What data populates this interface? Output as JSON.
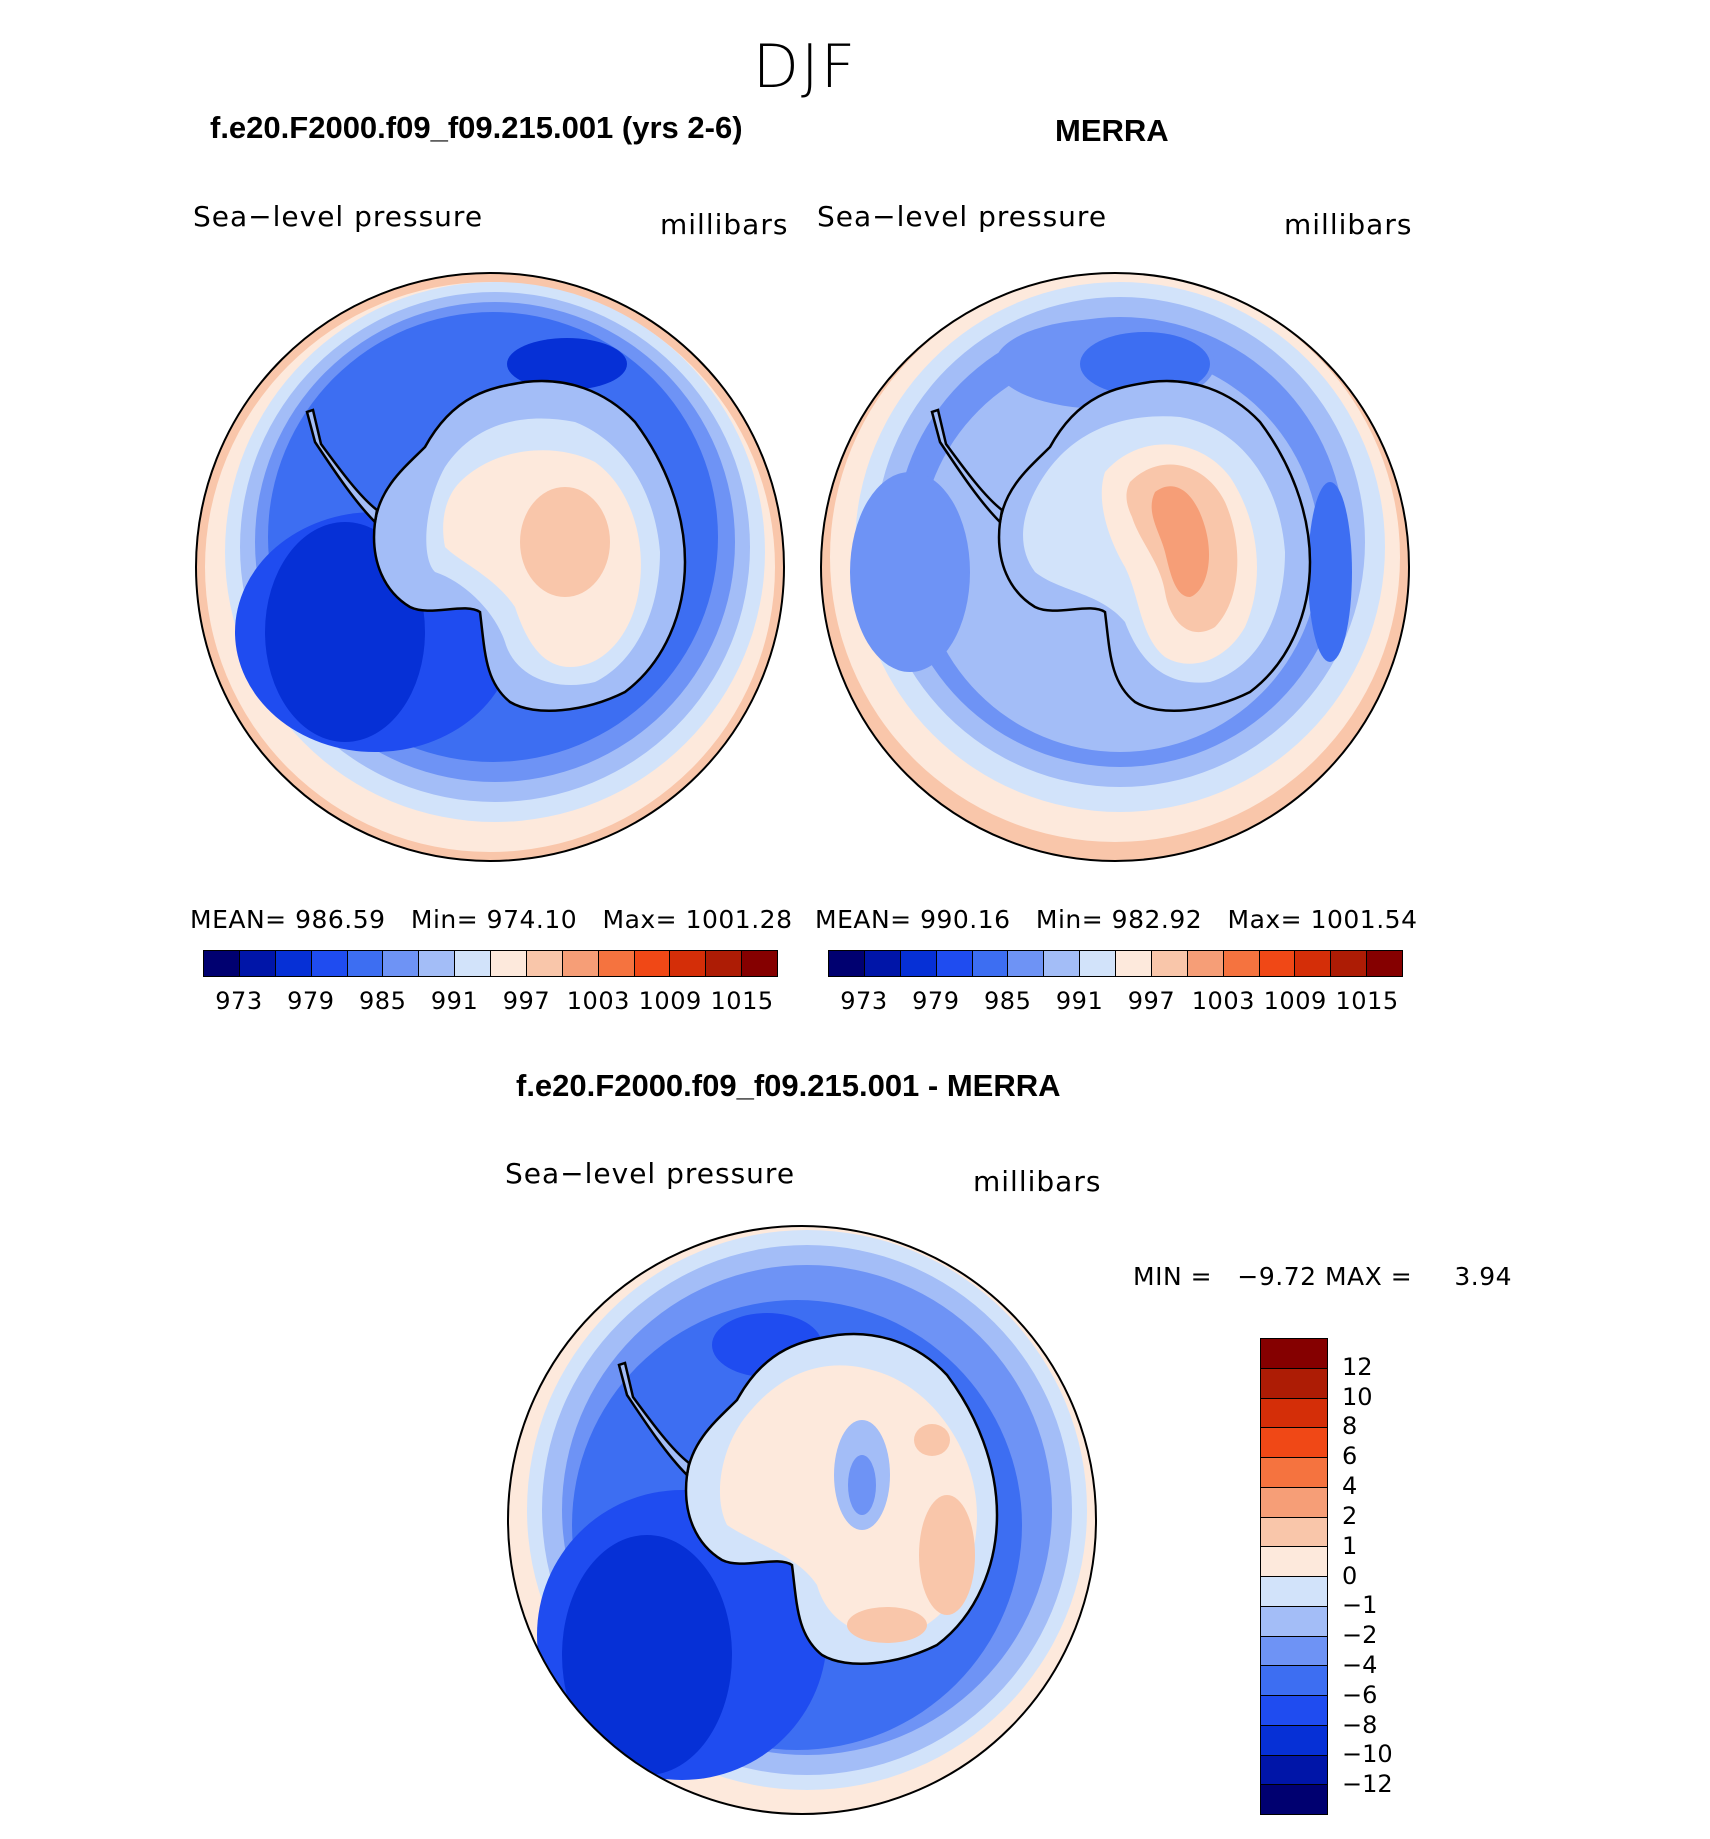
{
  "season": "DJF",
  "panels": {
    "model": {
      "title": "f.e20.F2000.f09_f09.215.001 (yrs 2-6)",
      "variable": "Sea−level pressure",
      "units": "millibars",
      "mean_label": "MEAN=",
      "mean": "986.59",
      "min_label": "Min=",
      "min": "974.10",
      "max_label": "Max=",
      "max": "1001.28"
    },
    "obs": {
      "title": "MERRA",
      "variable": "Sea−level pressure",
      "units": "millibars",
      "mean_label": "MEAN=",
      "mean": "990.16",
      "min_label": "Min=",
      "min": "982.92",
      "max_label": "Max=",
      "max": "1001.54"
    },
    "diff": {
      "title": "f.e20.F2000.f09_f09.215.001 - MERRA",
      "variable": "Sea−level pressure",
      "units": "millibars",
      "min_label": "MIN =",
      "min": "−9.72",
      "max_label": "MAX =",
      "max": "3.94"
    }
  },
  "colorbar_abs": {
    "colors": [
      "#000070",
      "#0015a8",
      "#0630d6",
      "#1f4cf0",
      "#3d6ef2",
      "#6e93f5",
      "#a3bdf7",
      "#d2e3fa",
      "#fde9dc",
      "#f9c6aa",
      "#f69e77",
      "#f5733f",
      "#f04816",
      "#d42e08",
      "#ad1c05",
      "#850000"
    ],
    "tick_labels": [
      "973",
      "979",
      "985",
      "991",
      "997",
      "1003",
      "1009",
      "1015"
    ]
  },
  "colorbar_diff": {
    "colors": [
      "#850000",
      "#ad1c05",
      "#d42e08",
      "#f04816",
      "#f5733f",
      "#f69e77",
      "#f9c6aa",
      "#fde9dc",
      "#d2e3fa",
      "#a3bdf7",
      "#6e93f5",
      "#3d6ef2",
      "#1f4cf0",
      "#0630d6",
      "#0015a8",
      "#000070"
    ],
    "tick_labels": [
      "12",
      "10",
      "8",
      "6",
      "4",
      "2",
      "1",
      "0",
      "−1",
      "−2",
      "−4",
      "−6",
      "−8",
      "−10",
      "−12"
    ]
  },
  "chart_data": [
    {
      "type": "heatmap",
      "title": "f.e20.F2000.f09_f09.215.001 (yrs 2-6)",
      "variable": "Sea−level pressure",
      "units": "millibars",
      "projection": "south polar stereographic",
      "mean": 986.59,
      "min": 974.1,
      "max": 1001.28,
      "levels": [
        973,
        976,
        979,
        982,
        985,
        988,
        991,
        994,
        997,
        1000,
        1003,
        1006,
        1009,
        1012,
        1015
      ]
    },
    {
      "type": "heatmap",
      "title": "MERRA",
      "variable": "Sea−level pressure",
      "units": "millibars",
      "projection": "south polar stereographic",
      "mean": 990.16,
      "min": 982.92,
      "max": 1001.54,
      "levels": [
        973,
        976,
        979,
        982,
        985,
        988,
        991,
        994,
        997,
        1000,
        1003,
        1006,
        1009,
        1012,
        1015
      ]
    },
    {
      "type": "heatmap",
      "title": "f.e20.F2000.f09_f09.215.001 - MERRA",
      "variable": "Sea−level pressure",
      "units": "millibars",
      "projection": "south polar stereographic",
      "min": -9.72,
      "max": 3.94,
      "levels": [
        -12,
        -10,
        -8,
        -6,
        -4,
        -2,
        -1,
        0,
        1,
        2,
        4,
        6,
        8,
        10,
        12
      ]
    }
  ]
}
